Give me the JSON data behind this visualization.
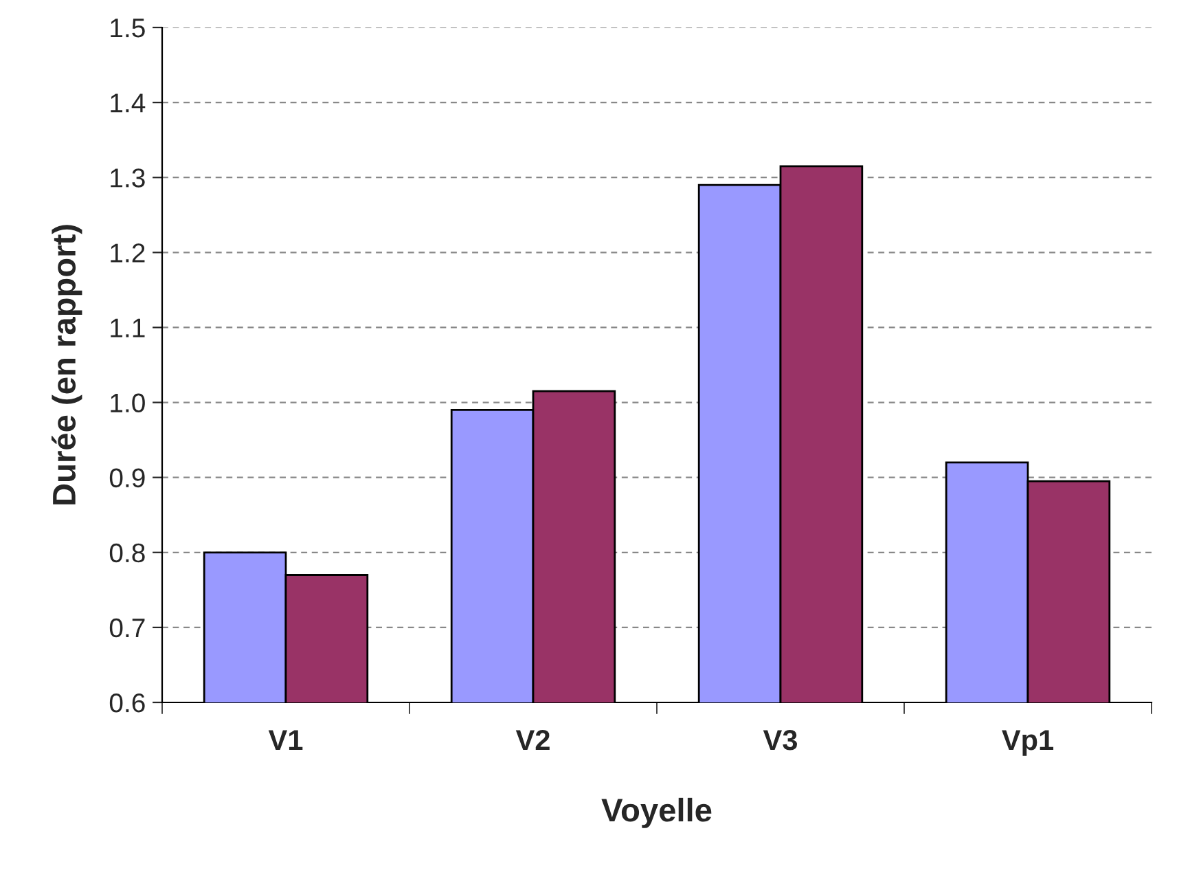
{
  "chart_data": {
    "type": "bar",
    "xlabel": "Voyelle",
    "ylabel": "Durée (en rapport)",
    "categories": [
      "V1",
      "V2",
      "V3",
      "Vp1"
    ],
    "series": [
      {
        "color": "#9999ff",
        "values": [
          0.8,
          0.99,
          1.29,
          0.92
        ]
      },
      {
        "color": "#993366",
        "values": [
          0.77,
          1.015,
          1.315,
          0.895
        ]
      }
    ],
    "ylim": [
      0.6,
      1.5
    ],
    "yticks": [
      0.6,
      0.7,
      0.8,
      0.9,
      {
        "value": 1.0,
        "label": "1.0"
      },
      1.1,
      1.2,
      1.3,
      1.4,
      1.5
    ],
    "grid": "y"
  }
}
